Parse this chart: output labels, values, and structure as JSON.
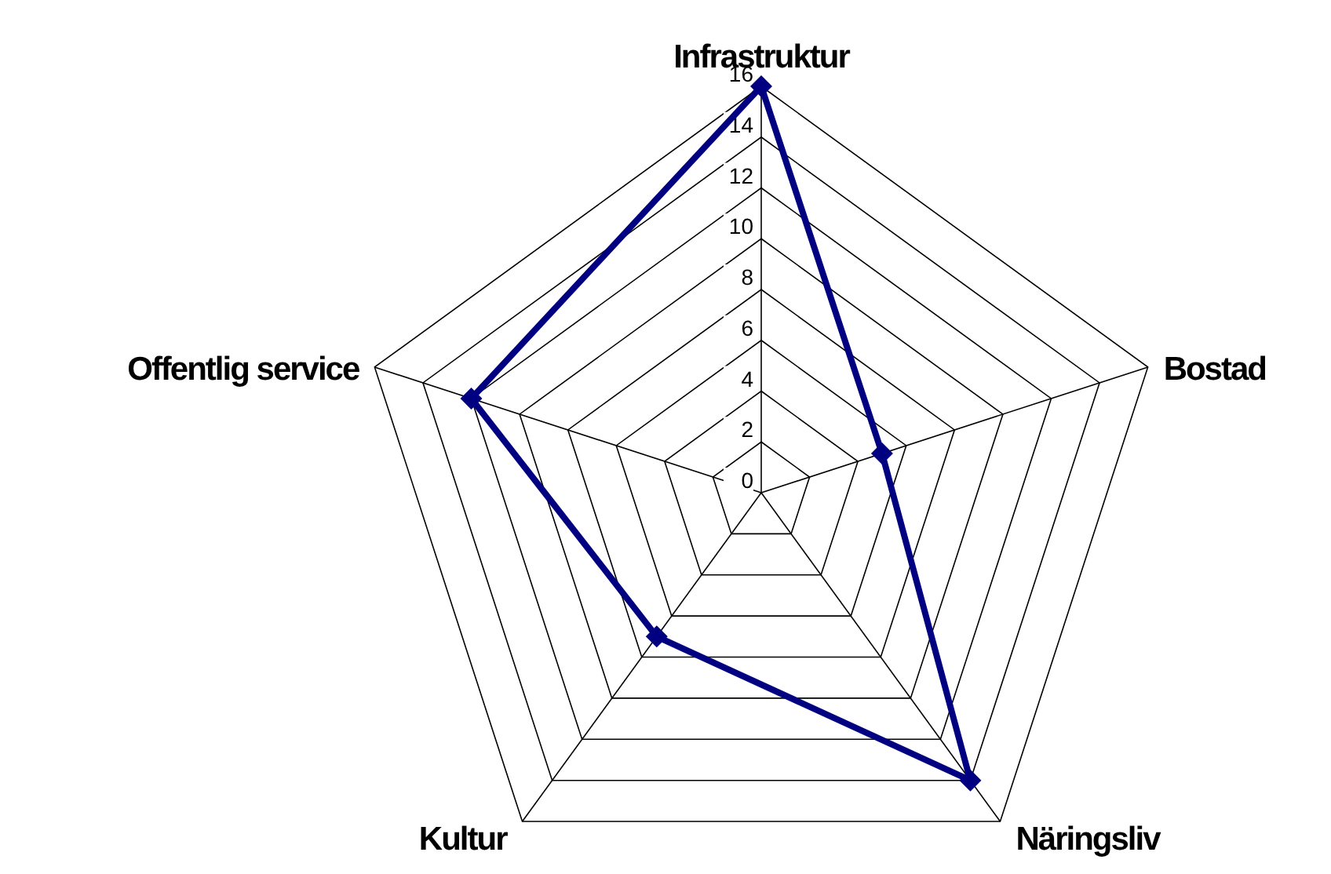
{
  "chart_data": {
    "type": "radar",
    "categories": [
      "Infrastruktur",
      "Bostad",
      "Näringsliv",
      "Kultur",
      "Offentlig service"
    ],
    "series": [
      {
        "color": "#000080",
        "values": [
          16,
          5,
          14,
          7,
          12
        ]
      }
    ],
    "ylim": [
      0,
      16
    ],
    "yticks": [
      0,
      2,
      4,
      6,
      8,
      10,
      12,
      14,
      16
    ],
    "marker": "diamond",
    "grid": true
  }
}
